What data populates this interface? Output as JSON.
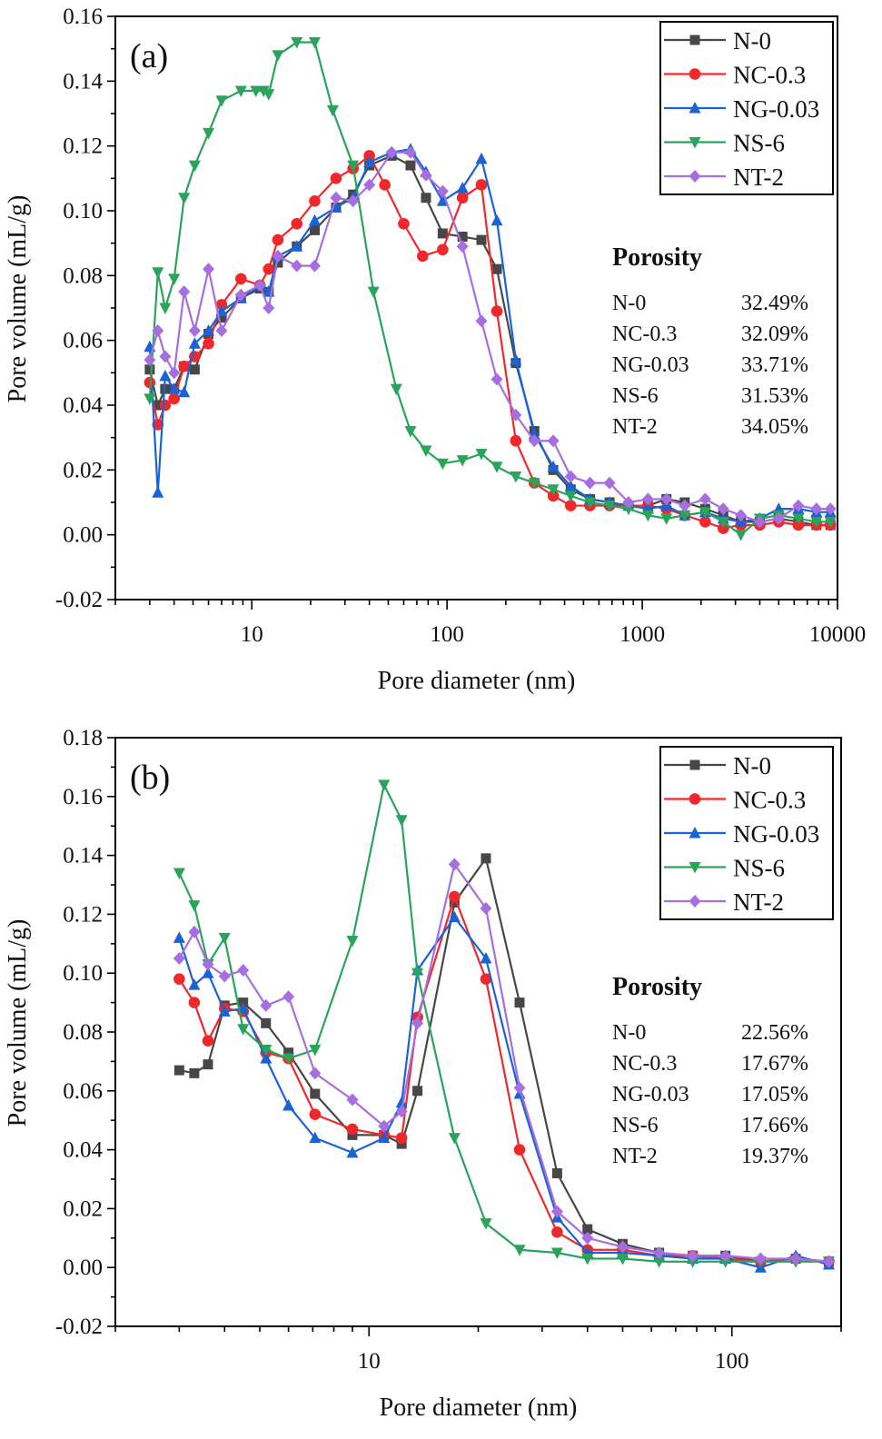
{
  "chart_data": [
    {
      "type": "line",
      "panel_label": "(a)",
      "xlabel": "Pore diameter (nm)",
      "ylabel": "Pore volume (mL/g)",
      "xscale": "log",
      "xlim": [
        2,
        10000
      ],
      "ylim": [
        -0.02,
        0.16
      ],
      "xticks": [
        10,
        100,
        1000,
        10000
      ],
      "xtick_labels": [
        "10",
        "100",
        "1000",
        "10000"
      ],
      "yticks": [
        -0.02,
        0.0,
        0.02,
        0.04,
        0.06,
        0.08,
        0.1,
        0.12,
        0.14,
        0.16
      ],
      "ytick_labels": [
        "-0.02",
        "0.00",
        "0.02",
        "0.04",
        "0.06",
        "0.08",
        "0.10",
        "0.12",
        "0.14",
        "0.16"
      ],
      "legend_position": "top-right",
      "series": [
        {
          "name": "N-0",
          "color": "#474747",
          "marker": "square",
          "x": [
            3.0,
            3.3,
            3.6,
            4.0,
            4.5,
            5.1,
            6.0,
            7.0,
            8.8,
            11.0,
            12.2,
            13.6,
            17.0,
            21.0,
            27.0,
            33.0,
            40.0,
            52.0,
            65.0,
            78.0,
            95.0,
            120.0,
            150.0,
            180.0,
            225.0,
            280.0,
            350.0,
            430.0,
            540.0,
            680.0,
            850.0,
            1070.0,
            1330.0,
            1650.0,
            2100.0,
            2600.0,
            3200.0,
            4000.0,
            5000.0,
            6300.0,
            7800.0,
            9200.0
          ],
          "y": [
            0.051,
            0.04,
            0.045,
            0.045,
            0.052,
            0.051,
            0.062,
            0.067,
            0.073,
            0.076,
            0.075,
            0.084,
            0.089,
            0.094,
            0.101,
            0.105,
            0.114,
            0.117,
            0.114,
            0.104,
            0.093,
            0.092,
            0.091,
            0.082,
            0.053,
            0.032,
            0.02,
            0.014,
            0.011,
            0.01,
            0.009,
            0.009,
            0.011,
            0.01,
            0.008,
            0.006,
            0.004,
            0.004,
            0.005,
            0.004,
            0.003,
            0.003
          ]
        },
        {
          "name": "NC-0.3",
          "color": "#f0282c",
          "marker": "circle",
          "x": [
            3.0,
            3.3,
            3.6,
            4.0,
            4.5,
            5.1,
            6.0,
            7.0,
            8.8,
            11.0,
            12.2,
            13.6,
            17.0,
            21.0,
            27.0,
            33.0,
            40.0,
            48.0,
            60.0,
            75.0,
            95.0,
            120.0,
            150.0,
            180.0,
            225.0,
            280.0,
            350.0,
            430.0,
            540.0,
            680.0,
            850.0,
            1070.0,
            1330.0,
            1650.0,
            2100.0,
            2600.0,
            3200.0,
            4000.0,
            5000.0,
            6300.0,
            7800.0,
            9200.0
          ],
          "y": [
            0.047,
            0.034,
            0.04,
            0.042,
            0.052,
            0.055,
            0.059,
            0.071,
            0.079,
            0.077,
            0.082,
            0.091,
            0.096,
            0.103,
            0.11,
            0.113,
            0.117,
            0.108,
            0.096,
            0.086,
            0.088,
            0.104,
            0.108,
            0.069,
            0.029,
            0.016,
            0.012,
            0.009,
            0.009,
            0.009,
            0.009,
            0.009,
            0.008,
            0.006,
            0.004,
            0.002,
            0.003,
            0.003,
            0.004,
            0.003,
            0.003,
            0.003
          ]
        },
        {
          "name": "NG-0.03",
          "color": "#1a63d6",
          "marker": "triangle-up",
          "x": [
            3.0,
            3.3,
            3.6,
            4.0,
            4.5,
            5.1,
            6.0,
            7.0,
            8.8,
            11.0,
            12.2,
            13.6,
            17.0,
            21.0,
            27.0,
            33.0,
            40.0,
            52.0,
            65.0,
            78.0,
            95.0,
            120.0,
            150.0,
            180.0,
            225.0,
            280.0,
            350.0,
            430.0,
            540.0,
            680.0,
            850.0,
            1070.0,
            1330.0,
            1650.0,
            2100.0,
            2600.0,
            3200.0,
            4000.0,
            5000.0,
            6300.0,
            7800.0,
            9200.0
          ],
          "y": [
            0.058,
            0.013,
            0.049,
            0.045,
            0.044,
            0.059,
            0.063,
            0.069,
            0.073,
            0.077,
            0.075,
            0.086,
            0.089,
            0.097,
            0.101,
            0.104,
            0.115,
            0.118,
            0.119,
            0.112,
            0.103,
            0.107,
            0.116,
            0.097,
            0.054,
            0.031,
            0.021,
            0.015,
            0.011,
            0.01,
            0.009,
            0.008,
            0.009,
            0.006,
            0.007,
            0.005,
            0.004,
            0.005,
            0.008,
            0.008,
            0.007,
            0.007
          ]
        },
        {
          "name": "NS-6",
          "color": "#2aa45a",
          "marker": "triangle-down",
          "x": [
            3.0,
            3.3,
            3.6,
            4.0,
            4.5,
            5.1,
            6.0,
            7.0,
            8.8,
            10.5,
            11.5,
            12.2,
            13.6,
            17.0,
            21.0,
            26.0,
            33.0,
            42.0,
            55.0,
            65.0,
            78.0,
            95.0,
            120.0,
            150.0,
            180.0,
            225.0,
            280.0,
            350.0,
            430.0,
            540.0,
            680.0,
            850.0,
            1070.0,
            1330.0,
            1650.0,
            2100.0,
            2600.0,
            3200.0,
            4000.0,
            5000.0,
            6300.0,
            7800.0,
            9200.0
          ],
          "y": [
            0.042,
            0.081,
            0.07,
            0.079,
            0.104,
            0.114,
            0.124,
            0.134,
            0.137,
            0.137,
            0.137,
            0.136,
            0.148,
            0.152,
            0.152,
            0.131,
            0.114,
            0.075,
            0.045,
            0.032,
            0.026,
            0.022,
            0.023,
            0.025,
            0.021,
            0.018,
            0.016,
            0.014,
            0.012,
            0.01,
            0.009,
            0.008,
            0.006,
            0.005,
            0.006,
            0.007,
            0.004,
            0.0,
            0.005,
            0.006,
            0.005,
            0.004,
            0.004
          ]
        },
        {
          "name": "NT-2",
          "color": "#a66ee0",
          "marker": "diamond",
          "x": [
            3.0,
            3.3,
            3.6,
            4.0,
            4.5,
            5.1,
            6.0,
            7.0,
            8.8,
            11.0,
            12.2,
            13.6,
            17.0,
            21.0,
            27.0,
            33.0,
            40.0,
            52.0,
            65.0,
            78.0,
            95.0,
            120.0,
            150.0,
            180.0,
            225.0,
            280.0,
            350.0,
            430.0,
            540.0,
            680.0,
            850.0,
            1070.0,
            1330.0,
            1650.0,
            2100.0,
            2600.0,
            3200.0,
            4000.0,
            5000.0,
            6300.0,
            7800.0,
            9200.0
          ],
          "y": [
            0.054,
            0.063,
            0.055,
            0.05,
            0.075,
            0.063,
            0.082,
            0.063,
            0.074,
            0.077,
            0.07,
            0.086,
            0.083,
            0.083,
            0.104,
            0.103,
            0.108,
            0.118,
            0.118,
            0.111,
            0.106,
            0.089,
            0.066,
            0.048,
            0.037,
            0.029,
            0.029,
            0.018,
            0.016,
            0.016,
            0.01,
            0.011,
            0.011,
            0.009,
            0.011,
            0.008,
            0.006,
            0.004,
            0.005,
            0.009,
            0.008,
            0.008
          ]
        }
      ],
      "annotation": {
        "title": "Porosity",
        "rows": [
          {
            "label": "N-0",
            "value": "32.49%"
          },
          {
            "label": "NC-0.3",
            "value": "32.09%"
          },
          {
            "label": "NG-0.03",
            "value": "33.71%"
          },
          {
            "label": "NS-6",
            "value": "31.53%"
          },
          {
            "label": "NT-2",
            "value": "34.05%"
          }
        ]
      }
    },
    {
      "type": "line",
      "panel_label": "(b)",
      "xlabel": "Pore diameter (nm)",
      "ylabel": "Pore volume (mL/g)",
      "xscale": "log",
      "xlim": [
        2,
        200
      ],
      "ylim": [
        -0.02,
        0.18
      ],
      "xticks": [
        10,
        100
      ],
      "xtick_labels": [
        "10",
        "100"
      ],
      "yticks": [
        -0.02,
        0.0,
        0.02,
        0.04,
        0.06,
        0.08,
        0.1,
        0.12,
        0.14,
        0.16,
        0.18
      ],
      "ytick_labels": [
        "-0.02",
        "0.00",
        "0.02",
        "0.04",
        "0.06",
        "0.08",
        "0.10",
        "0.12",
        "0.14",
        "0.16",
        "0.18"
      ],
      "legend_position": "top-right",
      "series": [
        {
          "name": "N-0",
          "color": "#474747",
          "marker": "square",
          "x": [
            3.0,
            3.3,
            3.6,
            4.0,
            4.5,
            5.2,
            6.0,
            7.1,
            9.0,
            11.0,
            12.3,
            13.6,
            17.2,
            21.0,
            26.0,
            33.0,
            40.0,
            50.0,
            63.0,
            78.0,
            96.0,
            120.0,
            150.0,
            185.0
          ],
          "y": [
            0.067,
            0.066,
            0.069,
            0.089,
            0.09,
            0.083,
            0.073,
            0.059,
            0.045,
            0.045,
            0.042,
            0.06,
            0.124,
            0.139,
            0.09,
            0.032,
            0.013,
            0.008,
            0.005,
            0.004,
            0.004,
            0.002,
            0.003,
            0.002
          ]
        },
        {
          "name": "NC-0.3",
          "color": "#f0282c",
          "marker": "circle",
          "x": [
            3.0,
            3.3,
            3.6,
            4.0,
            4.5,
            5.2,
            6.0,
            7.1,
            9.0,
            11.0,
            12.3,
            13.6,
            17.2,
            21.0,
            26.0,
            33.0,
            40.0,
            50.0,
            63.0,
            78.0,
            96.0,
            120.0,
            150.0,
            185.0
          ],
          "y": [
            0.098,
            0.09,
            0.077,
            0.088,
            0.087,
            0.073,
            0.071,
            0.052,
            0.047,
            0.045,
            0.044,
            0.085,
            0.126,
            0.098,
            0.04,
            0.012,
            0.006,
            0.006,
            0.004,
            0.004,
            0.003,
            0.002,
            0.003,
            0.002
          ]
        },
        {
          "name": "NG-0.03",
          "color": "#1a63d6",
          "marker": "triangle-up",
          "x": [
            3.0,
            3.3,
            3.6,
            4.0,
            4.5,
            5.2,
            6.0,
            7.1,
            9.0,
            11.0,
            12.3,
            13.6,
            17.2,
            21.0,
            26.0,
            33.0,
            40.0,
            50.0,
            63.0,
            78.0,
            96.0,
            120.0,
            150.0,
            185.0
          ],
          "y": [
            0.112,
            0.096,
            0.1,
            0.087,
            0.088,
            0.071,
            0.055,
            0.044,
            0.039,
            0.044,
            0.056,
            0.101,
            0.119,
            0.105,
            0.059,
            0.017,
            0.005,
            0.005,
            0.004,
            0.003,
            0.003,
            0.0,
            0.004,
            0.001
          ]
        },
        {
          "name": "NS-6",
          "color": "#2aa45a",
          "marker": "triangle-down",
          "x": [
            3.0,
            3.3,
            3.6,
            4.0,
            4.5,
            5.2,
            6.0,
            7.1,
            9.0,
            11.0,
            12.3,
            13.6,
            17.2,
            21.0,
            26.0,
            33.0,
            40.0,
            50.0,
            63.0,
            78.0,
            96.0,
            120.0,
            150.0,
            185.0
          ],
          "y": [
            0.134,
            0.123,
            0.103,
            0.112,
            0.081,
            0.074,
            0.071,
            0.074,
            0.111,
            0.164,
            0.152,
            0.1,
            0.044,
            0.015,
            0.006,
            0.005,
            0.003,
            0.003,
            0.002,
            0.002,
            0.002,
            0.002,
            0.002,
            0.002
          ]
        },
        {
          "name": "NT-2",
          "color": "#a66ee0",
          "marker": "diamond",
          "x": [
            3.0,
            3.3,
            3.6,
            4.0,
            4.5,
            5.2,
            6.0,
            7.1,
            9.0,
            11.0,
            12.3,
            13.6,
            17.2,
            21.0,
            26.0,
            33.0,
            40.0,
            50.0,
            63.0,
            78.0,
            96.0,
            120.0,
            150.0,
            185.0
          ],
          "y": [
            0.105,
            0.114,
            0.103,
            0.099,
            0.101,
            0.089,
            0.092,
            0.066,
            0.057,
            0.048,
            0.053,
            0.083,
            0.137,
            0.122,
            0.061,
            0.019,
            0.01,
            0.007,
            0.005,
            0.004,
            0.004,
            0.003,
            0.003,
            0.002
          ]
        }
      ],
      "annotation": {
        "title": "Porosity",
        "rows": [
          {
            "label": "N-0",
            "value": "22.56%"
          },
          {
            "label": "NC-0.3",
            "value": "17.67%"
          },
          {
            "label": "NG-0.03",
            "value": "17.05%"
          },
          {
            "label": "NS-6",
            "value": "17.66%"
          },
          {
            "label": "NT-2",
            "value": "19.37%"
          }
        ]
      }
    }
  ]
}
